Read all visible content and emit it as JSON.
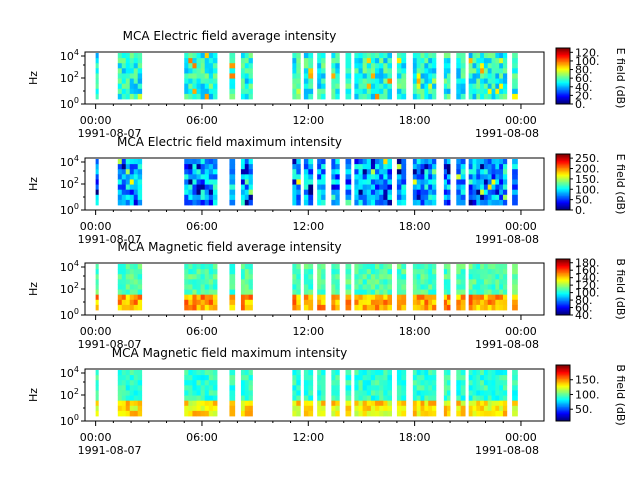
{
  "chart_data": [
    {
      "type": "heatmap",
      "title": "MCA  Electric field average intensity",
      "ylabel": "Hz",
      "y_ticks": [
        {
          "base": "10",
          "exp": "0"
        },
        {
          "base": "10",
          "exp": "2"
        },
        {
          "base": "10",
          "exp": "4"
        }
      ],
      "x_ticks": [
        "00:00",
        "06:00",
        "12:00",
        "18:00",
        "00:00"
      ],
      "x_date_labels": [
        "1991-08-07",
        "1991-08-08"
      ],
      "colorbar_label": "E field (dB)",
      "colorbar_ticks": [
        "120.",
        "100.",
        "80.",
        "60.",
        "40.",
        "20.",
        "0."
      ],
      "colorbar_range": [
        0,
        130
      ],
      "scale_y": "log"
    },
    {
      "type": "heatmap",
      "title": "MCA  Electric field maximum intensity",
      "ylabel": "Hz",
      "y_ticks": [
        {
          "base": "10",
          "exp": "0"
        },
        {
          "base": "10",
          "exp": "2"
        },
        {
          "base": "10",
          "exp": "4"
        }
      ],
      "x_ticks": [
        "00:00",
        "06:00",
        "12:00",
        "18:00",
        "00:00"
      ],
      "x_date_labels": [
        "1991-08-07",
        "1991-08-08"
      ],
      "colorbar_label": "E field (dB)",
      "colorbar_ticks": [
        "250.",
        "200.",
        "150.",
        "100.",
        "50.",
        "0."
      ],
      "colorbar_range": [
        0,
        270
      ],
      "scale_y": "log"
    },
    {
      "type": "heatmap",
      "title": "MCA  Magnetic field average intensity",
      "ylabel": "Hz",
      "y_ticks": [
        {
          "base": "10",
          "exp": "0"
        },
        {
          "base": "10",
          "exp": "2"
        },
        {
          "base": "10",
          "exp": "4"
        }
      ],
      "x_ticks": [
        "00:00",
        "06:00",
        "12:00",
        "18:00",
        "00:00"
      ],
      "x_date_labels": [
        "1991-08-07",
        "1991-08-08"
      ],
      "colorbar_label": "B field (dB)",
      "colorbar_ticks": [
        "180.",
        "160.",
        "140.",
        "120.",
        "100.",
        "80.",
        "60.",
        "40."
      ],
      "colorbar_range": [
        40,
        190
      ],
      "scale_y": "log"
    },
    {
      "type": "heatmap",
      "title": "MCA  Magnetic field maximum intensity",
      "ylabel": "Hz",
      "y_ticks": [
        {
          "base": "10",
          "exp": "0"
        },
        {
          "base": "10",
          "exp": "2"
        },
        {
          "base": "10",
          "exp": "4"
        }
      ],
      "x_ticks": [
        "00:00",
        "06:00",
        "12:00",
        "18:00",
        "00:00"
      ],
      "x_date_labels": [
        "1991-08-07",
        "1991-08-08"
      ],
      "colorbar_label": "B field (dB)",
      "colorbar_ticks": [
        "150.",
        "100.",
        "50."
      ],
      "colorbar_range": [
        10,
        200
      ],
      "scale_y": "log"
    }
  ]
}
